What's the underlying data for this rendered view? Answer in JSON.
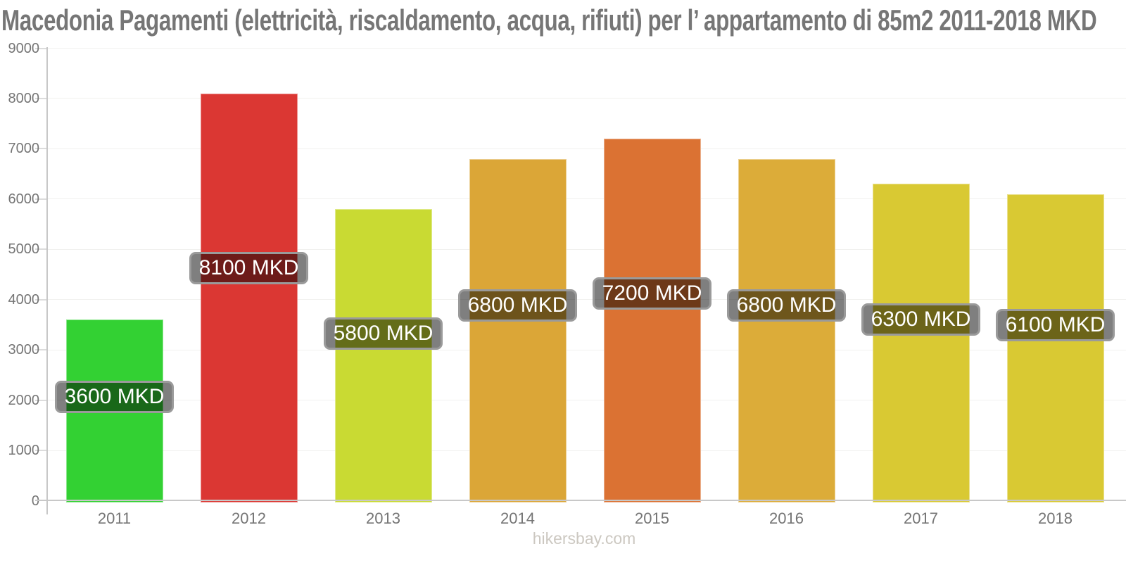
{
  "title": "Macedonia Pagamenti (elettricità, riscaldamento, acqua, rifiuti) per l’ appartamento di 85m2 2011-2018 MKD",
  "footer": {
    "text": "hikersbay.com"
  },
  "colors": {
    "title_text": "#767676",
    "axis_line": "#c8c8c8",
    "tick_text": "#757575",
    "gridline": "#f1f1ef",
    "badge_border": "#9a9a9a",
    "badge_text": "#ffffff",
    "footer_text": "#ccc8c1"
  },
  "chart_data": {
    "type": "bar",
    "title": "Macedonia Pagamenti (elettricità, riscaldamento, acqua, rifiuti) per l’ appartamento di 85m2 2011-2018 MKD",
    "categories": [
      "2011",
      "2012",
      "2013",
      "2014",
      "2015",
      "2016",
      "2017",
      "2018"
    ],
    "values": [
      3600,
      8100,
      5800,
      6800,
      7200,
      6800,
      6300,
      6100
    ],
    "unit": "MKD",
    "value_labels": [
      "3600 MKD",
      "8100 MKD",
      "5800 MKD",
      "6800 MKD",
      "7200 MKD",
      "6800 MKD",
      "6300 MKD",
      "6100 MKD"
    ],
    "bar_colors": [
      "#33d133",
      "#db3733",
      "#c9da33",
      "#dba637",
      "#db7233",
      "#dcac39",
      "#d9c933",
      "#d9c933"
    ],
    "xlabel": "",
    "ylabel": "",
    "ylim": [
      0,
      9000
    ],
    "yticks": [
      0,
      1000,
      2000,
      3000,
      4000,
      5000,
      6000,
      7000,
      8000,
      9000
    ],
    "grid": true,
    "legend": "none",
    "watermark": "hikersbay.com"
  }
}
